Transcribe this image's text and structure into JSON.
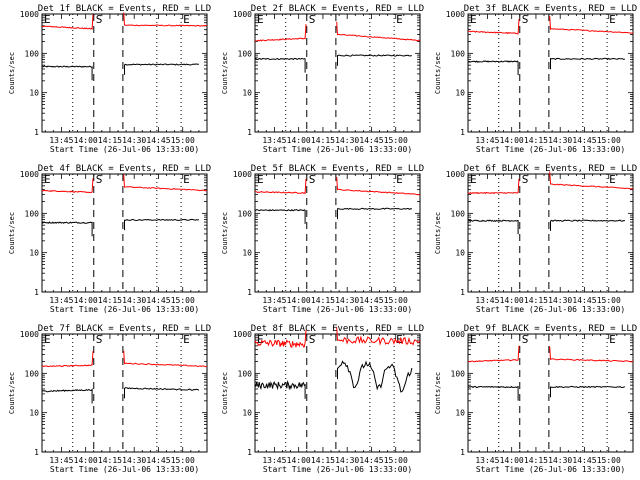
{
  "figure": {
    "common": {
      "ylabel": "Counts/sec",
      "xlabel": "Start Time (26-Jul-06 13:33:00)",
      "x_tick_labels": [
        "13:45",
        "14:00",
        "14:15",
        "14:30",
        "14:45",
        "15:00"
      ],
      "y_tick_labels": [
        "1",
        "10",
        "100",
        "1000"
      ],
      "marker_start": "S",
      "marker_end": "E",
      "series_colors": {
        "events": "#000000",
        "lld": "#ff0000"
      }
    }
  },
  "chart_data": [
    {
      "type": "line",
      "title": "Det 1f BLACK = Events, RED = LLD",
      "xlabel": "Start Time (26-Jul-06 13:33:00)",
      "ylabel": "Counts/sec",
      "xlim": [
        "13:33",
        "15:15"
      ],
      "ylim": [
        1,
        1000
      ],
      "yscale": "log",
      "dotted_lines": [
        "13:33",
        "13:52",
        "14:44",
        "14:59"
      ],
      "dashed_lines": [
        "14:05",
        "14:23"
      ],
      "marker_labels": [
        {
          "text": "E",
          "x": "13:33"
        },
        {
          "text": "S",
          "x": "14:05"
        },
        {
          "text": "E",
          "x": "14:59"
        }
      ],
      "series": [
        {
          "name": "BLACK = Events",
          "color": "#000000",
          "x": [
            "13:33",
            "14:04",
            "14:24",
            "15:10"
          ],
          "y": [
            46,
            46,
            52,
            52
          ]
        },
        {
          "name": "RED = LLD",
          "color": "#ff0000",
          "x": [
            "13:33",
            "14:04",
            "14:24",
            "15:15"
          ],
          "y": [
            490,
            420,
            520,
            500
          ]
        }
      ]
    },
    {
      "type": "line",
      "title": "Det 2f BLACK = Events, RED = LLD",
      "xlabel": "Start Time (26-Jul-06 13:33:00)",
      "ylabel": "Counts/sec",
      "xlim": [
        "13:33",
        "15:15"
      ],
      "ylim": [
        1,
        1000
      ],
      "yscale": "log",
      "dotted_lines": [
        "13:33",
        "13:52",
        "14:44",
        "14:59"
      ],
      "dashed_lines": [
        "14:05",
        "14:23"
      ],
      "marker_labels": [
        {
          "text": "E",
          "x": "13:33"
        },
        {
          "text": "S",
          "x": "14:05"
        },
        {
          "text": "E",
          "x": "14:59"
        }
      ],
      "series": [
        {
          "name": "BLACK = Events",
          "color": "#000000",
          "x": [
            "13:33",
            "14:04",
            "14:24",
            "15:10"
          ],
          "y": [
            72,
            72,
            88,
            88
          ]
        },
        {
          "name": "RED = LLD",
          "color": "#ff0000",
          "x": [
            "13:33",
            "14:04",
            "14:24",
            "15:15"
          ],
          "y": [
            210,
            240,
            300,
            210
          ]
        }
      ]
    },
    {
      "type": "line",
      "title": "Det 3f BLACK = Events, RED = LLD",
      "xlabel": "Start Time (26-Jul-06 13:33:00)",
      "ylabel": "Counts/sec",
      "xlim": [
        "13:33",
        "15:15"
      ],
      "ylim": [
        1,
        1000
      ],
      "yscale": "log",
      "dotted_lines": [
        "13:33",
        "13:52",
        "14:44",
        "14:59"
      ],
      "dashed_lines": [
        "14:05",
        "14:23"
      ],
      "marker_labels": [
        {
          "text": "E",
          "x": "13:33"
        },
        {
          "text": "S",
          "x": "14:05"
        },
        {
          "text": "E",
          "x": "14:59"
        }
      ],
      "series": [
        {
          "name": "BLACK = Events",
          "color": "#000000",
          "x": [
            "13:33",
            "14:04",
            "14:24",
            "15:10"
          ],
          "y": [
            62,
            62,
            72,
            72
          ]
        },
        {
          "name": "RED = LLD",
          "color": "#ff0000",
          "x": [
            "13:33",
            "14:04",
            "14:24",
            "15:15"
          ],
          "y": [
            360,
            320,
            420,
            330
          ]
        }
      ]
    },
    {
      "type": "line",
      "title": "Det 4f BLACK = Events, RED = LLD",
      "xlabel": "Start Time (26-Jul-06 13:33:00)",
      "ylabel": "Counts/sec",
      "xlim": [
        "13:33",
        "15:15"
      ],
      "ylim": [
        1,
        1000
      ],
      "yscale": "log",
      "dotted_lines": [
        "13:33",
        "13:52",
        "14:44",
        "14:59"
      ],
      "dashed_lines": [
        "14:05",
        "14:23"
      ],
      "marker_labels": [
        {
          "text": "E",
          "x": "13:33"
        },
        {
          "text": "S",
          "x": "14:05"
        },
        {
          "text": "E",
          "x": "14:59"
        }
      ],
      "series": [
        {
          "name": "BLACK = Events",
          "color": "#000000",
          "x": [
            "13:33",
            "14:04",
            "14:24",
            "15:10"
          ],
          "y": [
            58,
            58,
            68,
            68
          ]
        },
        {
          "name": "RED = LLD",
          "color": "#ff0000",
          "x": [
            "13:33",
            "14:04",
            "14:24",
            "15:15"
          ],
          "y": [
            380,
            340,
            470,
            380
          ]
        }
      ]
    },
    {
      "type": "line",
      "title": "Det 5f BLACK = Events, RED = LLD",
      "xlabel": "Start Time (26-Jul-06 13:33:00)",
      "ylabel": "Counts/sec",
      "xlim": [
        "13:33",
        "15:15"
      ],
      "ylim": [
        1,
        1000
      ],
      "yscale": "log",
      "dotted_lines": [
        "13:33",
        "13:52",
        "14:44",
        "14:59"
      ],
      "dashed_lines": [
        "14:05",
        "14:23"
      ],
      "marker_labels": [
        {
          "text": "E",
          "x": "13:33"
        },
        {
          "text": "S",
          "x": "14:05"
        },
        {
          "text": "E",
          "x": "14:59"
        }
      ],
      "series": [
        {
          "name": "BLACK = Events",
          "color": "#000000",
          "x": [
            "13:33",
            "14:04",
            "14:24",
            "15:10"
          ],
          "y": [
            120,
            120,
            130,
            130
          ]
        },
        {
          "name": "RED = LLD",
          "color": "#ff0000",
          "x": [
            "13:33",
            "14:04",
            "14:24",
            "15:15"
          ],
          "y": [
            350,
            330,
            400,
            300
          ]
        }
      ]
    },
    {
      "type": "line",
      "title": "Det 6f BLACK = Events, RED = LLD",
      "xlabel": "Start Time (26-Jul-06 13:33:00)",
      "ylabel": "Counts/sec",
      "xlim": [
        "13:33",
        "15:15"
      ],
      "ylim": [
        1,
        1000
      ],
      "yscale": "log",
      "dotted_lines": [
        "13:33",
        "13:52",
        "14:44",
        "14:59"
      ],
      "dashed_lines": [
        "14:05",
        "14:23"
      ],
      "marker_labels": [
        {
          "text": "E",
          "x": "13:33"
        },
        {
          "text": "S",
          "x": "14:05"
        },
        {
          "text": "E",
          "x": "14:59"
        }
      ],
      "series": [
        {
          "name": "BLACK = Events",
          "color": "#000000",
          "x": [
            "13:33",
            "14:04",
            "14:24",
            "15:10"
          ],
          "y": [
            65,
            65,
            65,
            65
          ]
        },
        {
          "name": "RED = LLD",
          "color": "#ff0000",
          "x": [
            "13:33",
            "14:04",
            "14:24",
            "15:15"
          ],
          "y": [
            330,
            330,
            550,
            420
          ]
        }
      ]
    },
    {
      "type": "line",
      "title": "Det 7f BLACK = Events, RED = LLD",
      "xlabel": "Start Time (26-Jul-06 13:33:00)",
      "ylabel": "Counts/sec",
      "xlim": [
        "13:33",
        "15:15"
      ],
      "ylim": [
        1,
        1000
      ],
      "yscale": "log",
      "dotted_lines": [
        "13:33",
        "13:52",
        "14:44",
        "14:59"
      ],
      "dashed_lines": [
        "14:05",
        "14:23"
      ],
      "marker_labels": [
        {
          "text": "E",
          "x": "13:33"
        },
        {
          "text": "S",
          "x": "14:05"
        },
        {
          "text": "E",
          "x": "14:59"
        }
      ],
      "series": [
        {
          "name": "BLACK = Events",
          "color": "#000000",
          "x": [
            "13:33",
            "14:04",
            "14:24",
            "15:10"
          ],
          "y": [
            35,
            38,
            42,
            38
          ]
        },
        {
          "name": "RED = LLD",
          "color": "#ff0000",
          "x": [
            "13:33",
            "14:04",
            "14:24",
            "15:15"
          ],
          "y": [
            150,
            160,
            180,
            150
          ]
        }
      ]
    },
    {
      "type": "line",
      "title": "Det 8f BLACK = Events, RED = LLD",
      "xlabel": "Start Time (26-Jul-06 13:33:00)",
      "ylabel": "Counts/sec",
      "xlim": [
        "13:33",
        "15:15"
      ],
      "ylim": [
        1,
        1000
      ],
      "yscale": "log",
      "dotted_lines": [
        "13:33",
        "13:52",
        "14:44",
        "14:59"
      ],
      "dashed_lines": [
        "14:05",
        "14:23"
      ],
      "marker_labels": [
        {
          "text": "E",
          "x": "13:33"
        },
        {
          "text": "S",
          "x": "14:05"
        },
        {
          "text": "E",
          "x": "14:59"
        }
      ],
      "series": [
        {
          "name": "BLACK = Events",
          "color": "#000000",
          "x": [
            "13:33",
            "14:04",
            "14:24",
            "15:10"
          ],
          "y": [
            50,
            50,
            130,
            80
          ]
        },
        {
          "name": "RED = LLD",
          "color": "#ff0000",
          "x": [
            "13:33",
            "14:04",
            "14:24",
            "15:15"
          ],
          "y": [
            600,
            550,
            700,
            650
          ]
        }
      ]
    },
    {
      "type": "line",
      "title": "Det 9f BLACK = Events, RED = LLD",
      "xlabel": "Start Time (26-Jul-06 13:33:00)",
      "ylabel": "Counts/sec",
      "xlim": [
        "13:33",
        "15:15"
      ],
      "ylim": [
        1,
        1000
      ],
      "yscale": "log",
      "dotted_lines": [
        "13:33",
        "13:52",
        "14:44",
        "14:59"
      ],
      "dashed_lines": [
        "14:05",
        "14:23"
      ],
      "marker_labels": [
        {
          "text": "E",
          "x": "13:33"
        },
        {
          "text": "S",
          "x": "14:05"
        },
        {
          "text": "E",
          "x": "14:59"
        }
      ],
      "series": [
        {
          "name": "BLACK = Events",
          "color": "#000000",
          "x": [
            "13:33",
            "14:04",
            "14:24",
            "15:10"
          ],
          "y": [
            45,
            45,
            45,
            45
          ]
        },
        {
          "name": "RED = LLD",
          "color": "#ff0000",
          "x": [
            "13:33",
            "14:04",
            "14:24",
            "15:15"
          ],
          "y": [
            200,
            220,
            230,
            200
          ]
        }
      ]
    }
  ]
}
